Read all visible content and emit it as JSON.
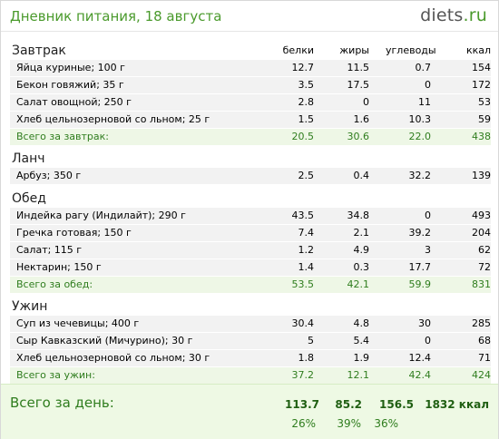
{
  "header": {
    "title": "Дневник питания, 18 августа",
    "logo_main": "diets",
    "logo_ext": ".ru"
  },
  "columns": {
    "protein": "белки",
    "fat": "жиры",
    "carbs": "углеводы",
    "kcal": "ккал"
  },
  "meals": [
    {
      "name": "Завтрак",
      "items": [
        {
          "name": "Яйца куриные; 100 г",
          "protein": "12.7",
          "fat": "11.5",
          "carbs": "0.7",
          "kcal": "154"
        },
        {
          "name": "Бекон говяжий; 35 г",
          "protein": "3.5",
          "fat": "17.5",
          "carbs": "0",
          "kcal": "172"
        },
        {
          "name": "Салат овощной; 250 г",
          "protein": "2.8",
          "fat": "0",
          "carbs": "11",
          "kcal": "53"
        },
        {
          "name": "Хлеб цельнозерновой со льном; 25 г",
          "protein": "1.5",
          "fat": "1.6",
          "carbs": "10.3",
          "kcal": "59"
        }
      ],
      "total": {
        "name": "Всего за завтрак:",
        "protein": "20.5",
        "fat": "30.6",
        "carbs": "22.0",
        "kcal": "438"
      }
    },
    {
      "name": "Ланч",
      "items": [
        {
          "name": "Арбуз; 350 г",
          "protein": "2.5",
          "fat": "0.4",
          "carbs": "32.2",
          "kcal": "139"
        }
      ]
    },
    {
      "name": "Обед",
      "items": [
        {
          "name": "Индейка рагу (Индилайт); 290 г",
          "protein": "43.5",
          "fat": "34.8",
          "carbs": "0",
          "kcal": "493"
        },
        {
          "name": "Гречка готовая; 150 г",
          "protein": "7.4",
          "fat": "2.1",
          "carbs": "39.2",
          "kcal": "204"
        },
        {
          "name": "Салат; 115 г",
          "protein": "1.2",
          "fat": "4.9",
          "carbs": "3",
          "kcal": "62"
        },
        {
          "name": "Нектарин; 150 г",
          "protein": "1.4",
          "fat": "0.3",
          "carbs": "17.7",
          "kcal": "72"
        }
      ],
      "total": {
        "name": "Всего за обед:",
        "protein": "53.5",
        "fat": "42.1",
        "carbs": "59.9",
        "kcal": "831"
      }
    },
    {
      "name": "Ужин",
      "items": [
        {
          "name": "Суп из чечевицы; 400 г",
          "protein": "30.4",
          "fat": "4.8",
          "carbs": "30",
          "kcal": "285"
        },
        {
          "name": "Сыр Кавказский (Мичурино); 30 г",
          "protein": "5",
          "fat": "5.4",
          "carbs": "0",
          "kcal": "68"
        },
        {
          "name": "Хлеб цельнозерновой со льном; 30 г",
          "protein": "1.8",
          "fat": "1.9",
          "carbs": "12.4",
          "kcal": "71"
        }
      ],
      "total": {
        "name": "Всего за ужин:",
        "protein": "37.2",
        "fat": "12.1",
        "carbs": "42.4",
        "kcal": "424"
      }
    }
  ],
  "day": {
    "label": "Всего за день:",
    "protein": "113.7",
    "fat": "85.2",
    "carbs": "156.5",
    "kcal": "1832 ккал",
    "protein_pct": "26%",
    "fat_pct": "39%",
    "carbs_pct": "36%"
  }
}
